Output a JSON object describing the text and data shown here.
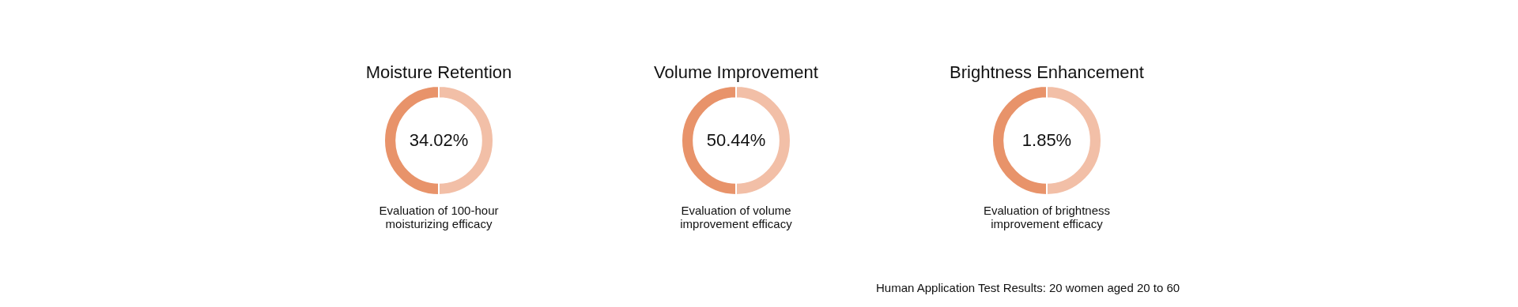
{
  "chart_data": [
    {
      "type": "donut",
      "title": "Moisture Retention",
      "categories": [
        null,
        null
      ],
      "values": [
        50,
        50
      ],
      "colors": [
        "#f2bfa7",
        "#e8936a"
      ],
      "legend": false,
      "annotations": [
        "34.02%",
        "Evaluation of 100-hour\nmoisturizing efficacy"
      ]
    },
    {
      "type": "donut",
      "title": "Volume Improvement",
      "categories": [
        null,
        null
      ],
      "values": [
        50,
        50
      ],
      "colors": [
        "#f2bfa7",
        "#e8936a"
      ],
      "legend": false,
      "annotations": [
        "50.44%",
        "Evaluation of volume\nimprovement efficacy"
      ]
    },
    {
      "type": "donut",
      "title": "Brightness Enhancement",
      "categories": [
        null,
        null
      ],
      "values": [
        50,
        50
      ],
      "colors": [
        "#f2bfa7",
        "#e8936a"
      ],
      "legend": false,
      "annotations": [
        "1.85%",
        "Evaluation of brightness\nimprovement efficacy",
        "Human Application Test Results: 20 women aged 20 to 60"
      ]
    }
  ]
}
